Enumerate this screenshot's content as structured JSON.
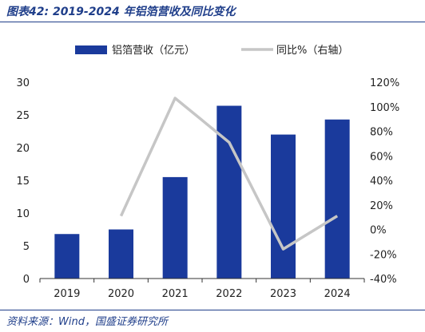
{
  "header": {
    "title": "图表42:  2019-2024 年铝箔营收及同比变化"
  },
  "footer": {
    "source": "资料来源：Wind，国盛证券研究所"
  },
  "colors": {
    "bar": "#1a3a9c",
    "line": "#c6c6c6",
    "accent": "#1f3e8a"
  },
  "chart_data": {
    "type": "bar",
    "categories": [
      "2019",
      "2020",
      "2021",
      "2022",
      "2023",
      "2024"
    ],
    "series": [
      {
        "name": "铝箔营收（亿元）",
        "type": "bar",
        "axis": "left",
        "values": [
          6.8,
          7.5,
          15.5,
          26.4,
          22.0,
          24.3
        ]
      },
      {
        "name": "同比%（右轴）",
        "type": "line",
        "axis": "right",
        "values": [
          null,
          11,
          107,
          71,
          -16,
          11
        ]
      }
    ],
    "y_left": {
      "min": 0,
      "max": 30,
      "ticks": [
        0,
        5,
        10,
        15,
        20,
        25,
        30
      ]
    },
    "y_right": {
      "min": -40,
      "max": 120,
      "ticks": [
        "-40%",
        "-20%",
        "0%",
        "20%",
        "40%",
        "60%",
        "80%",
        "100%",
        "120%"
      ]
    },
    "legend_position": "top-center",
    "grid": false
  }
}
